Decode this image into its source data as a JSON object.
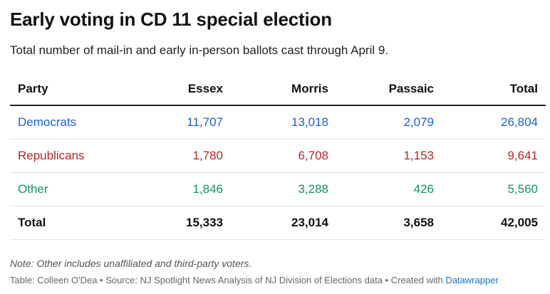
{
  "colors": {
    "democrats": "#1a5fd6",
    "republicans": "#b82525",
    "other": "#14916e"
  },
  "chart_data": {
    "type": "table",
    "title": "Early voting in CD 11 special election",
    "subtitle": "Total number of mail-in and early in-person ballots cast through April 9.",
    "columns": [
      "Party",
      "Essex",
      "Morris",
      "Passaic",
      "Total"
    ],
    "rows": [
      {
        "party": "Democrats",
        "values": [
          "11,707",
          "13,018",
          "2,079",
          "26,804"
        ],
        "color_key": "democrats"
      },
      {
        "party": "Republicans",
        "values": [
          "1,780",
          "6,708",
          "1,153",
          "9,641"
        ],
        "color_key": "republicans"
      },
      {
        "party": "Other",
        "values": [
          "1,846",
          "3,288",
          "426",
          "5,560"
        ],
        "color_key": "other"
      },
      {
        "party": "Total",
        "values": [
          "15,333",
          "23,014",
          "3,658",
          "42,005"
        ],
        "color_key": null
      }
    ],
    "note": "Note: Other includes unaffiliated and third-party voters.",
    "credit": "Table: Colleen O'Dea • Source: NJ Spotlight News Analysis of NJ Division of Elections data • Created with ",
    "credit_link": "Datawrapper"
  }
}
